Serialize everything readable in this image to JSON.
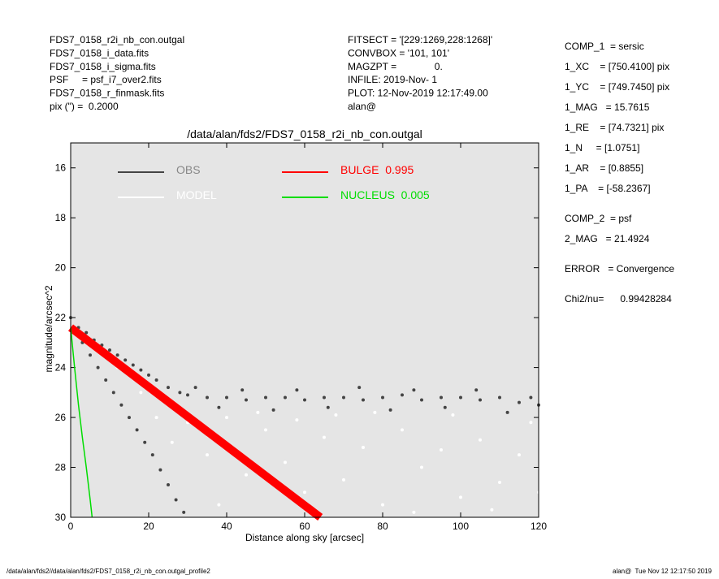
{
  "header_left": [
    "FDS7_0158_r2i_nb_con.outgal",
    "FDS7_0158_i_data.fits",
    "FDS7_0158_i_sigma.fits",
    "PSF     = psf_i7_over2.fits",
    "FDS7_0158_r_finmask.fits",
    "pix (\") =  0.2000"
  ],
  "header_middle": [
    "FITSECT = '[229:1269,228:1268]'",
    "CONVBOX = '101, 101'",
    "MAGZPT =              0.",
    "INFILE: 2019-Nov- 1",
    "PLOT: 12-Nov-2019 12:17:49.00",
    "alan@"
  ],
  "parameters": [
    "COMP_1  = sersic",
    "1_XC    = [750.4100] pix",
    "1_YC    = [749.7450] pix",
    "1_MAG   = 15.7615",
    "1_RE    = [74.7321] pix",
    "1_N     = [1.0751]",
    "1_AR    = [0.8855]",
    "1_PA    = [-58.2367]",
    "COMP_2  = psf",
    "2_MAG   = 21.4924",
    "ERROR   = Convergence",
    "Chi2/nu=      0.99428284"
  ],
  "footer_left": "/data/alan/fds2//data/alan/fds2/FDS7_0158_r2i_nb_con.outgal_profile2",
  "footer_right": "alan@  Tue Nov 12 12:17:50 2019",
  "chart_data": {
    "type": "scatter",
    "title": "/data/alan/fds2/FDS7_0158_r2i_nb_con.outgal",
    "xlabel": "Distance along sky [arcsec]",
    "ylabel": "magnitude/arcsec^2",
    "xlim": [
      0,
      120
    ],
    "ylim": [
      15,
      30
    ],
    "y_inverted": true,
    "xticks": [
      0,
      20,
      40,
      60,
      80,
      100,
      120
    ],
    "yticks": [
      16,
      18,
      20,
      22,
      24,
      26,
      28,
      30
    ],
    "series": [
      {
        "name": "OBS",
        "color": "#444444",
        "mode": "points",
        "x": [
          0,
          2,
          4,
          6,
          8,
          10,
          12,
          14,
          16,
          18,
          20,
          22,
          25,
          28,
          30,
          35,
          40,
          45,
          50,
          55,
          60,
          65,
          70,
          75,
          80,
          85,
          90,
          95,
          100,
          105,
          110,
          115,
          120,
          32,
          38,
          44,
          52,
          58,
          66,
          74,
          82,
          88,
          96,
          104,
          112,
          118,
          3,
          5,
          7,
          9,
          11,
          13,
          15,
          17,
          19,
          21,
          23,
          25,
          27,
          29
        ],
        "values": [
          22.0,
          22.4,
          22.6,
          22.9,
          23.1,
          23.3,
          23.5,
          23.7,
          23.9,
          24.1,
          24.3,
          24.5,
          24.8,
          25.0,
          25.1,
          25.2,
          25.2,
          25.3,
          25.2,
          25.2,
          25.3,
          25.2,
          25.2,
          25.3,
          25.2,
          25.1,
          25.3,
          25.2,
          25.2,
          25.3,
          25.2,
          25.4,
          25.5,
          24.8,
          25.6,
          24.9,
          25.7,
          24.9,
          25.6,
          24.8,
          25.7,
          24.9,
          25.6,
          24.9,
          25.8,
          25.2,
          23.0,
          23.5,
          24.0,
          24.5,
          25.0,
          25.5,
          26.0,
          26.5,
          27.0,
          27.5,
          28.1,
          28.7,
          29.3,
          29.8
        ]
      },
      {
        "name": "MODEL",
        "color": "#ffffff",
        "mode": "points",
        "x": [
          12,
          18,
          22,
          26,
          30,
          35,
          40,
          45,
          50,
          55,
          60,
          65,
          70,
          75,
          80,
          85,
          90,
          95,
          100,
          105,
          110,
          115,
          120,
          38,
          48,
          58,
          68,
          78,
          88,
          98,
          108,
          118
        ],
        "values": [
          24.0,
          25.0,
          26.0,
          27.0,
          26.2,
          27.5,
          26.0,
          28.3,
          26.5,
          27.8,
          29.0,
          26.8,
          28.5,
          27.2,
          29.5,
          26.5,
          28.0,
          27.3,
          29.2,
          26.9,
          28.6,
          27.5,
          29.0,
          29.5,
          25.8,
          26.1,
          25.9,
          25.8,
          29.8,
          25.9,
          29.7,
          26.2
        ]
      },
      {
        "name": "BULGE  0.995",
        "color": "#ff0000",
        "mode": "line",
        "x": [
          0,
          64
        ],
        "values": [
          22.4,
          30
        ]
      },
      {
        "name": "NUCLEUS  0.005",
        "color": "#00dd00",
        "mode": "line",
        "x": [
          0,
          1,
          2,
          3,
          4,
          5,
          5.5
        ],
        "values": [
          22.4,
          24,
          25.5,
          26.8,
          28,
          29.3,
          30
        ]
      }
    ]
  }
}
